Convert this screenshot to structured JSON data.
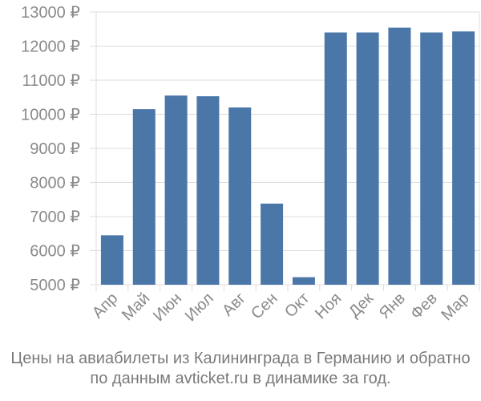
{
  "chart_data": {
    "type": "bar",
    "categories": [
      "Апр",
      "Май",
      "Июн",
      "Июл",
      "Авг",
      "Сен",
      "Окт",
      "Ноя",
      "Дек",
      "Янв",
      "Фев",
      "Мар"
    ],
    "values": [
      6450,
      10150,
      10550,
      10530,
      10200,
      7380,
      5220,
      12400,
      12400,
      12540,
      12400,
      12430
    ],
    "ylim": [
      5000,
      13000
    ],
    "yticks": [
      5000,
      6000,
      7000,
      8000,
      9000,
      10000,
      11000,
      12000,
      13000
    ],
    "tick_suffix": " ₽",
    "grid": true,
    "bar_color": "#4a76a8"
  },
  "caption": {
    "line1": "Цены на авиабилеты из Калининграда в Германию и обратно",
    "line2": "по данным avticket.ru в динамике за год."
  }
}
